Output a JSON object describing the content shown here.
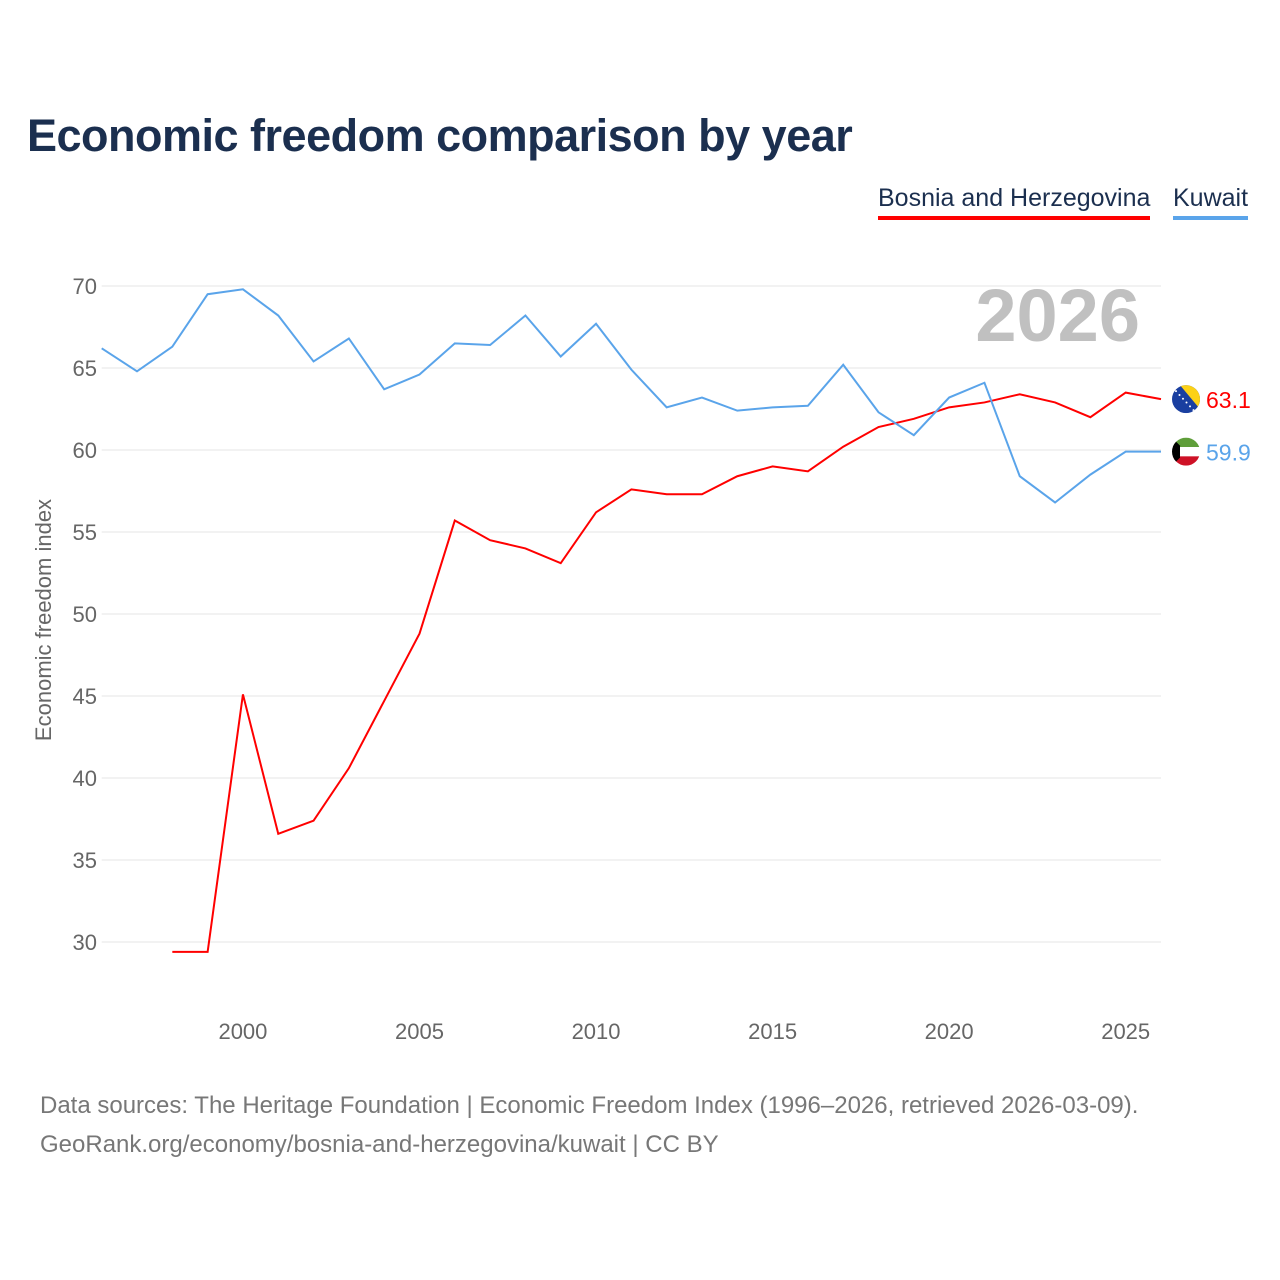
{
  "chart_data": {
    "type": "line",
    "title": "Economic freedom comparison by year",
    "ylabel": "Economic freedom index",
    "xlabel": "",
    "ylim": [
      30,
      70
    ],
    "xlim": [
      1996,
      2026
    ],
    "yticks": [
      "30",
      "35",
      "40",
      "45",
      "50",
      "55",
      "60",
      "65",
      "70"
    ],
    "xticks": [
      "2000",
      "2005",
      "2010",
      "2015",
      "2020",
      "2025"
    ],
    "year_label": "2026",
    "grid": true,
    "legend_position": "top-right",
    "series": [
      {
        "name": "Bosnia and Herzegovina",
        "color": "#ff0000",
        "last_label": "63.1",
        "x": [
          1998,
          1999,
          2000,
          2001,
          2002,
          2003,
          2004,
          2005,
          2006,
          2007,
          2008,
          2009,
          2010,
          2011,
          2012,
          2013,
          2014,
          2015,
          2016,
          2017,
          2018,
          2019,
          2020,
          2021,
          2022,
          2023,
          2024,
          2025,
          2026
        ],
        "y": [
          29.4,
          29.4,
          45.1,
          36.6,
          37.4,
          40.6,
          44.7,
          48.8,
          55.7,
          54.5,
          54.0,
          53.1,
          56.2,
          57.6,
          57.3,
          57.3,
          58.4,
          59.0,
          58.7,
          60.2,
          61.4,
          61.9,
          62.6,
          62.9,
          63.4,
          62.9,
          62.0,
          63.5,
          63.1
        ]
      },
      {
        "name": "Kuwait",
        "color": "#5aa4ea",
        "last_label": "59.9",
        "x": [
          1996,
          1997,
          1998,
          1999,
          2000,
          2001,
          2002,
          2003,
          2004,
          2005,
          2006,
          2007,
          2008,
          2009,
          2010,
          2011,
          2012,
          2013,
          2014,
          2015,
          2016,
          2017,
          2018,
          2019,
          2020,
          2021,
          2022,
          2023,
          2024,
          2025,
          2026
        ],
        "y": [
          66.2,
          64.8,
          66.3,
          69.5,
          69.8,
          68.2,
          65.4,
          66.8,
          63.7,
          64.6,
          66.5,
          66.4,
          68.2,
          65.7,
          67.7,
          64.9,
          62.6,
          63.2,
          62.4,
          62.6,
          62.7,
          65.2,
          62.3,
          60.9,
          63.2,
          64.1,
          58.4,
          56.8,
          58.5,
          59.9,
          59.9
        ]
      }
    ]
  },
  "footer": {
    "line1": "Data sources: The Heritage Foundation | Economic Freedom Index (1996–2026, retrieved 2026-03-09).",
    "line2": "GeoRank.org/economy/bosnia-and-herzegovina/kuwait | CC BY"
  }
}
